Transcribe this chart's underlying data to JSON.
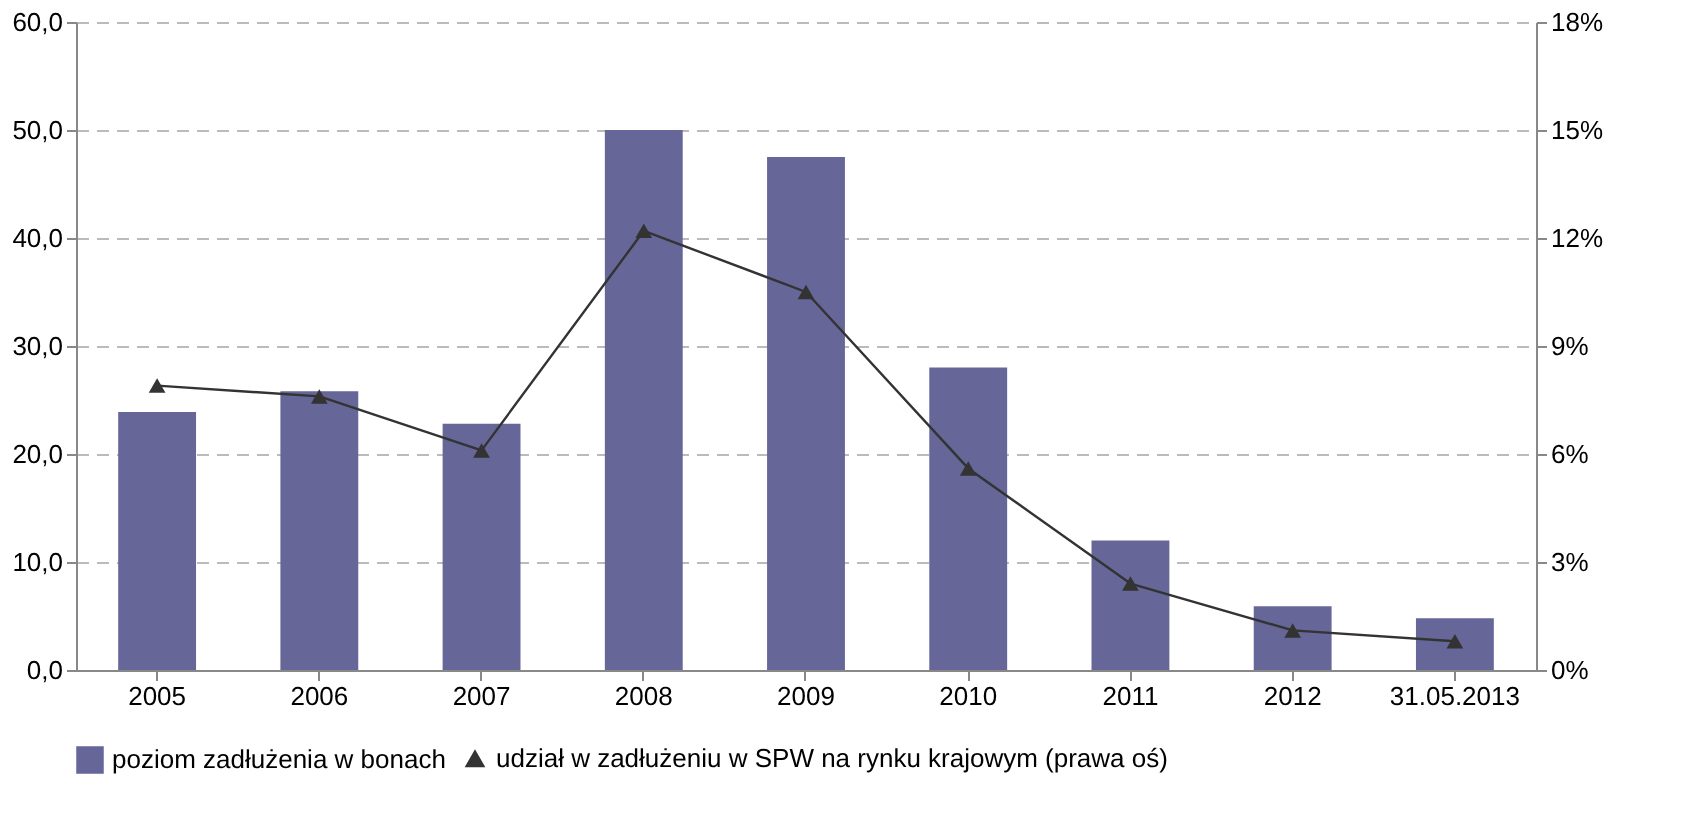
{
  "chart_data": {
    "type": "bar",
    "categories": [
      "2005",
      "2006",
      "2007",
      "2008",
      "2009",
      "2010",
      "2011",
      "2012",
      "31.05.2013"
    ],
    "series": [
      {
        "name": "poziom zadłużenia w bonach",
        "color": "#666699",
        "values": [
          23.9,
          25.8,
          22.8,
          50.0,
          47.5,
          28.0,
          12.0,
          5.9,
          4.8
        ]
      },
      {
        "name": "udział w zadłużeniu w SPW na rynku krajowym (prawa oś)",
        "type": "line",
        "axis": "y2",
        "color": "#333333",
        "marker": "triangle",
        "values": [
          7.9,
          7.6,
          6.1,
          12.2,
          10.5,
          5.6,
          2.4,
          1.1,
          0.8
        ]
      }
    ],
    "ylim": [
      0,
      60
    ],
    "yticks": [
      {
        "value": 0,
        "label": "0,0"
      },
      {
        "value": 10,
        "label": "10,0"
      },
      {
        "value": 20,
        "label": "20,0"
      },
      {
        "value": 30,
        "label": "30,0"
      },
      {
        "value": 40,
        "label": "40,0"
      },
      {
        "value": 50,
        "label": "50,0"
      },
      {
        "value": 60,
        "label": "60,0"
      }
    ],
    "y2lim": [
      0,
      18
    ],
    "y2ticks": [
      {
        "value": 0,
        "label": "0%"
      },
      {
        "value": 3,
        "label": "3%"
      },
      {
        "value": 6,
        "label": "6%"
      },
      {
        "value": 9,
        "label": "9%"
      },
      {
        "value": 12,
        "label": "12%"
      },
      {
        "value": 15,
        "label": "15%"
      },
      {
        "value": 18,
        "label": "18%"
      }
    ],
    "grid": "y",
    "legend": "bottom"
  }
}
